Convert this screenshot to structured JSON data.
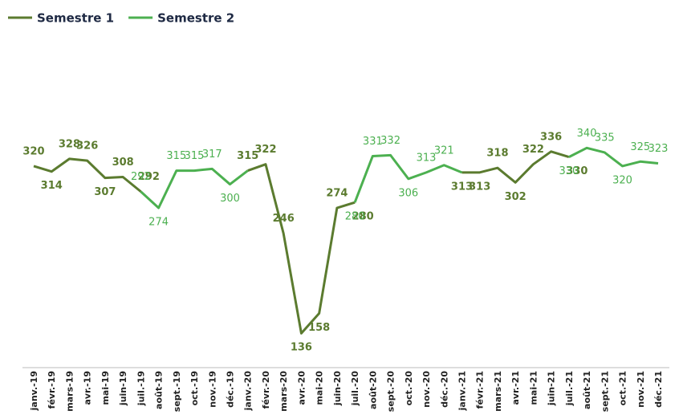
{
  "chart_data": {
    "type": "line",
    "categories": [
      "janv.-19",
      "févr.-19",
      "mars-19",
      "avr.-19",
      "mai-19",
      "juin-19",
      "juil.-19",
      "août-19",
      "sept.-19",
      "oct.-19",
      "nov.-19",
      "déc.-19",
      "janv.-20",
      "févr.-20",
      "mars-20",
      "avr.-20",
      "mai-20",
      "juin-20",
      "juil.-20",
      "août-20",
      "sept.-20",
      "oct.-20",
      "nov.-20",
      "déc.-20",
      "janv.-21",
      "févr.-21",
      "mars-21",
      "avr.-21",
      "mai-21",
      "juin-21",
      "juil.-21",
      "août-21",
      "sept.-21",
      "oct.-21",
      "nov.-21",
      "déc.-21"
    ],
    "series": [
      {
        "name": "Semestre 1",
        "color": "#5b7b2f",
        "values": [
          320,
          314,
          328,
          326,
          307,
          308,
          292,
          null,
          null,
          null,
          null,
          null,
          315,
          322,
          246,
          136,
          158,
          274,
          280,
          null,
          null,
          null,
          null,
          null,
          313,
          313,
          318,
          302,
          322,
          336,
          330,
          null,
          null,
          null,
          null,
          null
        ]
      },
      {
        "name": "Semestre 2",
        "color": "#4cb050",
        "values": [
          null,
          null,
          null,
          null,
          null,
          null,
          292,
          274,
          315,
          315,
          317,
          300,
          315,
          null,
          null,
          null,
          null,
          null,
          280,
          331,
          332,
          306,
          313,
          321,
          313,
          null,
          null,
          null,
          null,
          null,
          330,
          340,
          335,
          320,
          325,
          323
        ]
      }
    ],
    "ylim": [
      100,
      380
    ]
  }
}
